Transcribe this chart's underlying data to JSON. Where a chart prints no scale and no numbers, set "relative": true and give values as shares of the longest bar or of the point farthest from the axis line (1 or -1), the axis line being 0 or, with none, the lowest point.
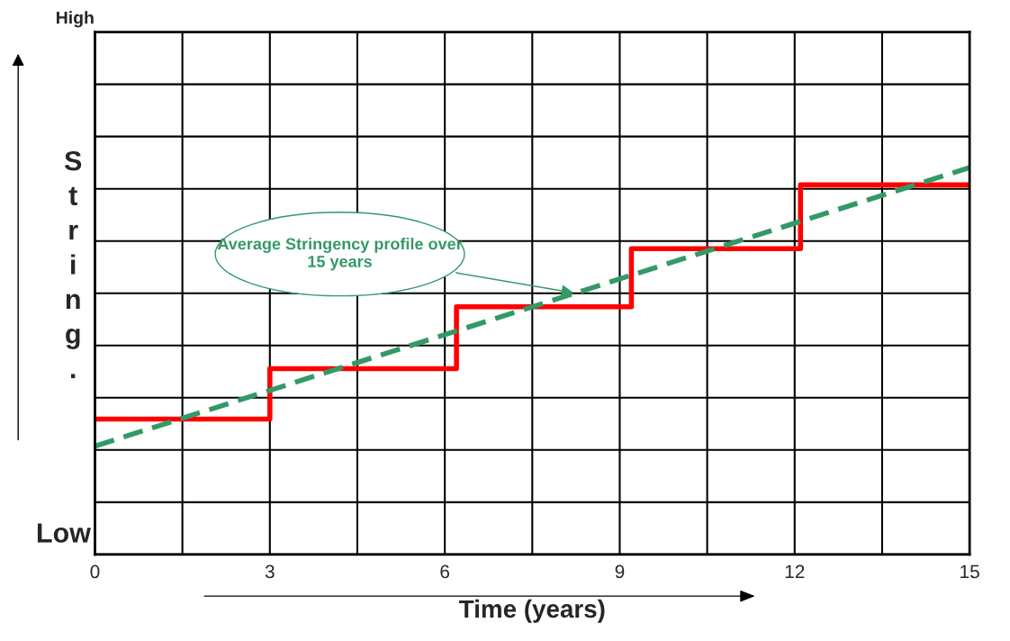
{
  "chart_data": {
    "type": "line",
    "relative": true,
    "xlabel": "Time (years)",
    "ylabel": "String.",
    "xlim": [
      0,
      15
    ],
    "xticks": [
      0,
      {
        "value": 1.5,
        "label": null
      },
      3,
      {
        "value": 4.5,
        "label": null
      },
      6,
      {
        "value": 7.5,
        "label": null
      },
      9,
      {
        "value": 10.5,
        "label": null
      },
      12,
      {
        "value": 13.5,
        "label": null
      },
      15
    ],
    "grid": true,
    "series": [
      {
        "type": "step",
        "color": "#ff0000",
        "line_style": "solid",
        "x": [
          0,
          3,
          6.2,
          9.2,
          12.1,
          15
        ],
        "values": [
          0.35,
          0.48,
          0.64,
          0.79,
          0.955,
          0.955
        ]
      },
      {
        "color": "#339966",
        "line_style": "dashed",
        "x": [
          0,
          15
        ],
        "values": [
          0.28,
          1.0
        ]
      }
    ],
    "annotations": [
      "High",
      "Low",
      "Average Stringency profile over 15 years"
    ]
  }
}
